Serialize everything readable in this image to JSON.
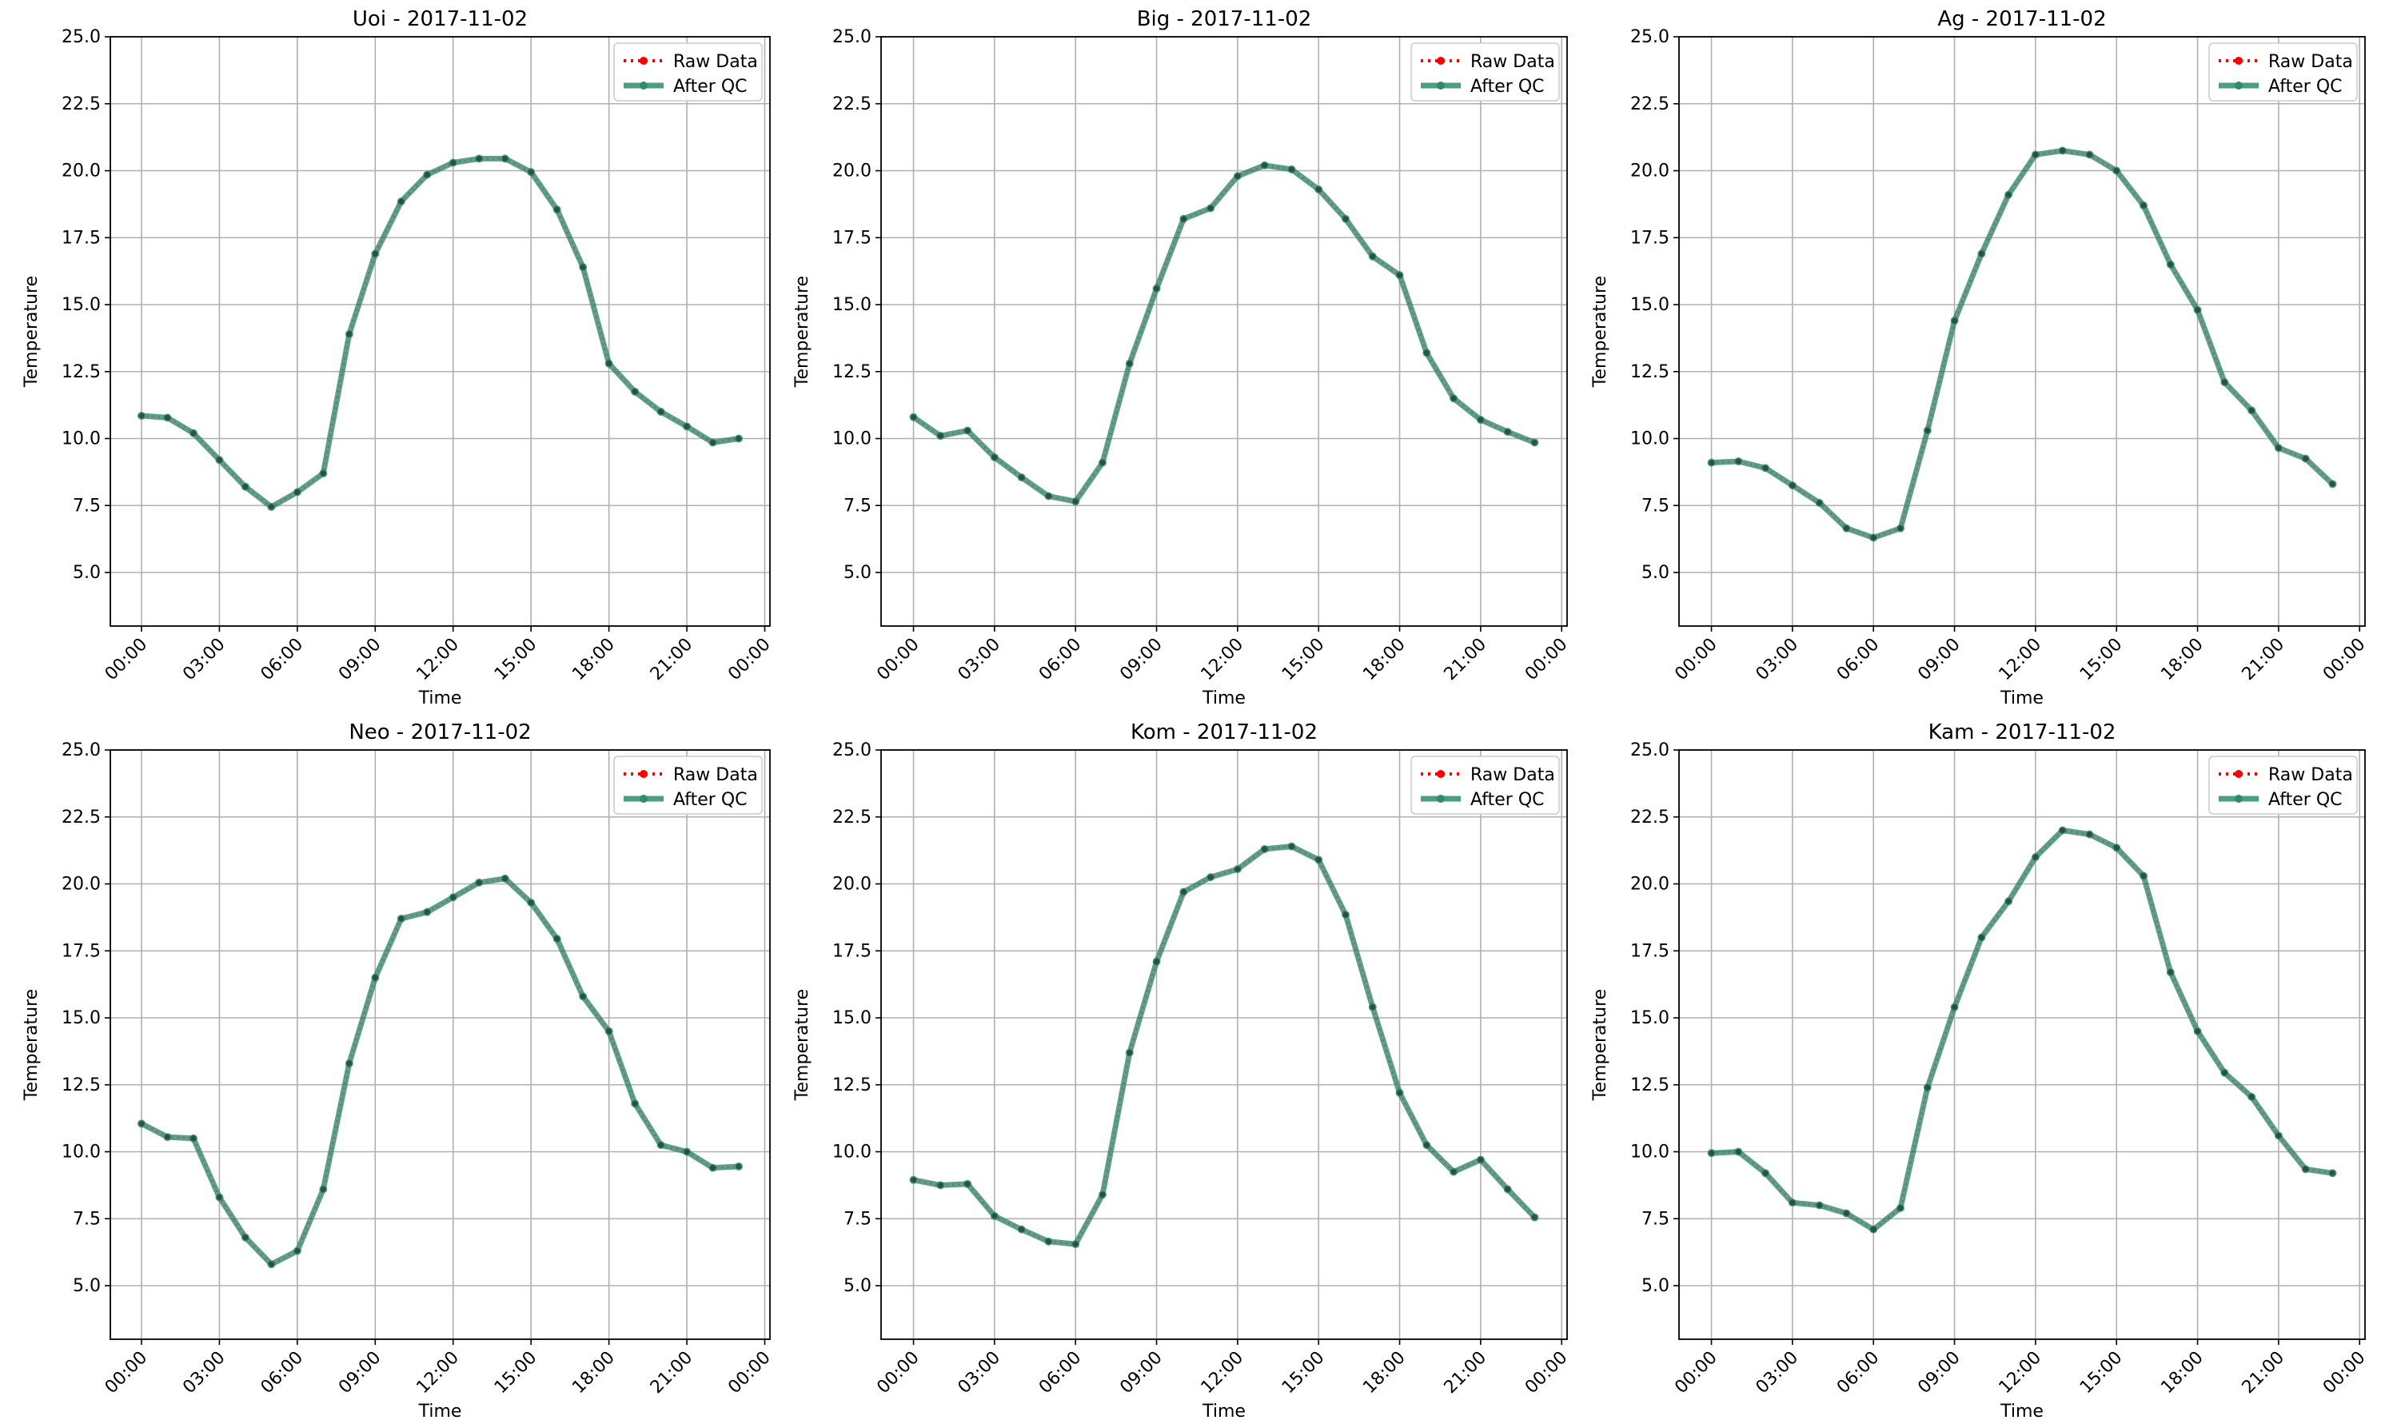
{
  "chart_data": [
    {
      "type": "line",
      "title": "Uoi - 2017-11-02",
      "xlabel": "Time",
      "ylabel": "Temperature",
      "ylim": [
        3,
        25
      ],
      "yticks": [
        "5.0",
        "7.5",
        "10.0",
        "12.5",
        "15.0",
        "17.5",
        "20.0",
        "22.5",
        "25.0"
      ],
      "xlim_hours": [
        -1.2,
        24.2
      ],
      "xticks": [
        "00:00",
        "03:00",
        "06:00",
        "09:00",
        "12:00",
        "15:00",
        "18:00",
        "21:00",
        "00:00"
      ],
      "grid": true,
      "legend_position": "top-right",
      "x_hours": [
        0,
        1,
        2,
        3,
        4,
        5,
        6,
        7,
        8,
        9,
        10,
        11,
        12,
        13,
        14,
        15,
        16,
        17,
        18,
        19,
        20,
        21,
        22,
        23
      ],
      "series": [
        {
          "name": "Raw Data",
          "color": "#ff0000",
          "style": "dotted",
          "values": [
            10.85,
            10.78,
            10.2,
            9.2,
            8.2,
            7.45,
            8.0,
            8.7,
            13.9,
            16.9,
            18.85,
            19.85,
            20.3,
            20.45,
            20.45,
            19.95,
            18.55,
            16.4,
            12.8,
            11.75,
            11.0,
            10.45,
            9.85,
            10.0
          ]
        },
        {
          "name": "After QC",
          "color": "#2e8b6e",
          "style": "solid",
          "values": [
            10.85,
            10.78,
            10.2,
            9.2,
            8.2,
            7.45,
            8.0,
            8.7,
            13.9,
            16.9,
            18.85,
            19.85,
            20.3,
            20.45,
            20.45,
            19.95,
            18.55,
            16.4,
            12.8,
            11.75,
            11.0,
            10.45,
            9.85,
            10.0
          ]
        }
      ]
    },
    {
      "type": "line",
      "title": "Big - 2017-11-02",
      "xlabel": "Time",
      "ylabel": "Temperature",
      "ylim": [
        3,
        25
      ],
      "yticks": [
        "5.0",
        "7.5",
        "10.0",
        "12.5",
        "15.0",
        "17.5",
        "20.0",
        "22.5",
        "25.0"
      ],
      "xlim_hours": [
        -1.2,
        24.2
      ],
      "xticks": [
        "00:00",
        "03:00",
        "06:00",
        "09:00",
        "12:00",
        "15:00",
        "18:00",
        "21:00",
        "00:00"
      ],
      "grid": true,
      "legend_position": "top-right",
      "x_hours": [
        0,
        1,
        2,
        3,
        4,
        5,
        6,
        7,
        8,
        9,
        10,
        11,
        12,
        13,
        14,
        15,
        16,
        17,
        18,
        19,
        20,
        21,
        22,
        23
      ],
      "series": [
        {
          "name": "Raw Data",
          "color": "#ff0000",
          "style": "dotted",
          "values": [
            10.8,
            10.1,
            10.3,
            9.3,
            8.55,
            7.85,
            7.65,
            9.1,
            12.8,
            15.6,
            18.2,
            18.6,
            19.8,
            20.2,
            20.05,
            19.3,
            18.2,
            16.8,
            16.1,
            13.2,
            11.5,
            10.7,
            10.25,
            9.85
          ]
        },
        {
          "name": "After QC",
          "color": "#2e8b6e",
          "style": "solid",
          "values": [
            10.8,
            10.1,
            10.3,
            9.3,
            8.55,
            7.85,
            7.65,
            9.1,
            12.8,
            15.6,
            18.2,
            18.6,
            19.8,
            20.2,
            20.05,
            19.3,
            18.2,
            16.8,
            16.1,
            13.2,
            11.5,
            10.7,
            10.25,
            9.85
          ]
        }
      ]
    },
    {
      "type": "line",
      "title": "Ag - 2017-11-02",
      "xlabel": "Time",
      "ylabel": "Temperature",
      "ylim": [
        3,
        25
      ],
      "yticks": [
        "5.0",
        "7.5",
        "10.0",
        "12.5",
        "15.0",
        "17.5",
        "20.0",
        "22.5",
        "25.0"
      ],
      "xlim_hours": [
        -1.2,
        24.2
      ],
      "xticks": [
        "00:00",
        "03:00",
        "06:00",
        "09:00",
        "12:00",
        "15:00",
        "18:00",
        "21:00",
        "00:00"
      ],
      "grid": true,
      "legend_position": "top-right",
      "x_hours": [
        0,
        1,
        2,
        3,
        4,
        5,
        6,
        7,
        8,
        9,
        10,
        11,
        12,
        13,
        14,
        15,
        16,
        17,
        18,
        19,
        20,
        21,
        22,
        23
      ],
      "series": [
        {
          "name": "Raw Data",
          "color": "#ff0000",
          "style": "dotted",
          "values": [
            9.1,
            9.15,
            8.9,
            8.25,
            7.6,
            6.65,
            6.3,
            6.65,
            10.3,
            14.4,
            16.9,
            19.1,
            20.6,
            20.75,
            20.6,
            20.0,
            18.7,
            16.5,
            14.8,
            12.1,
            11.05,
            9.65,
            9.25,
            8.3
          ]
        },
        {
          "name": "After QC",
          "color": "#2e8b6e",
          "style": "solid",
          "values": [
            9.1,
            9.15,
            8.9,
            8.25,
            7.6,
            6.65,
            6.3,
            6.65,
            10.3,
            14.4,
            16.9,
            19.1,
            20.6,
            20.75,
            20.6,
            20.0,
            18.7,
            16.5,
            14.8,
            12.1,
            11.05,
            9.65,
            9.25,
            8.3
          ]
        }
      ]
    },
    {
      "type": "line",
      "title": "Neo - 2017-11-02",
      "xlabel": "Time",
      "ylabel": "Temperature",
      "ylim": [
        3,
        25
      ],
      "yticks": [
        "5.0",
        "7.5",
        "10.0",
        "12.5",
        "15.0",
        "17.5",
        "20.0",
        "22.5",
        "25.0"
      ],
      "xlim_hours": [
        -1.2,
        24.2
      ],
      "xticks": [
        "00:00",
        "03:00",
        "06:00",
        "09:00",
        "12:00",
        "15:00",
        "18:00",
        "21:00",
        "00:00"
      ],
      "grid": true,
      "legend_position": "top-right",
      "x_hours": [
        0,
        1,
        2,
        3,
        4,
        5,
        6,
        7,
        8,
        9,
        10,
        11,
        12,
        13,
        14,
        15,
        16,
        17,
        18,
        19,
        20,
        21,
        22,
        23
      ],
      "series": [
        {
          "name": "Raw Data",
          "color": "#ff0000",
          "style": "dotted",
          "values": [
            11.05,
            10.55,
            10.5,
            8.3,
            6.8,
            5.8,
            6.3,
            8.6,
            13.3,
            16.5,
            18.7,
            18.95,
            19.5,
            20.05,
            20.2,
            19.3,
            17.95,
            15.8,
            14.5,
            11.8,
            10.25,
            10.0,
            9.4,
            9.45
          ]
        },
        {
          "name": "After QC",
          "color": "#2e8b6e",
          "style": "solid",
          "values": [
            11.05,
            10.55,
            10.5,
            8.3,
            6.8,
            5.8,
            6.3,
            8.6,
            13.3,
            16.5,
            18.7,
            18.95,
            19.5,
            20.05,
            20.2,
            19.3,
            17.95,
            15.8,
            14.5,
            11.8,
            10.25,
            10.0,
            9.4,
            9.45
          ]
        }
      ]
    },
    {
      "type": "line",
      "title": "Kom - 2017-11-02",
      "xlabel": "Time",
      "ylabel": "Temperature",
      "ylim": [
        3,
        25
      ],
      "yticks": [
        "5.0",
        "7.5",
        "10.0",
        "12.5",
        "15.0",
        "17.5",
        "20.0",
        "22.5",
        "25.0"
      ],
      "xlim_hours": [
        -1.2,
        24.2
      ],
      "xticks": [
        "00:00",
        "03:00",
        "06:00",
        "09:00",
        "12:00",
        "15:00",
        "18:00",
        "21:00",
        "00:00"
      ],
      "grid": true,
      "legend_position": "top-right",
      "x_hours": [
        0,
        1,
        2,
        3,
        4,
        5,
        6,
        7,
        8,
        9,
        10,
        11,
        12,
        13,
        14,
        15,
        16,
        17,
        18,
        19,
        20,
        21,
        22,
        23
      ],
      "series": [
        {
          "name": "Raw Data",
          "color": "#ff0000",
          "style": "dotted",
          "values": [
            8.95,
            8.75,
            8.8,
            7.6,
            7.1,
            6.65,
            6.55,
            8.4,
            13.7,
            17.1,
            19.7,
            20.25,
            20.55,
            21.3,
            21.4,
            20.9,
            18.85,
            15.4,
            12.2,
            10.25,
            9.25,
            9.7,
            8.6,
            7.55
          ]
        },
        {
          "name": "After QC",
          "color": "#2e8b6e",
          "style": "solid",
          "values": [
            8.95,
            8.75,
            8.8,
            7.6,
            7.1,
            6.65,
            6.55,
            8.4,
            13.7,
            17.1,
            19.7,
            20.25,
            20.55,
            21.3,
            21.4,
            20.9,
            18.85,
            15.4,
            12.2,
            10.25,
            9.25,
            9.7,
            8.6,
            7.55
          ]
        }
      ]
    },
    {
      "type": "line",
      "title": "Kam - 2017-11-02",
      "xlabel": "Time",
      "ylabel": "Temperature",
      "ylim": [
        3,
        25
      ],
      "yticks": [
        "5.0",
        "7.5",
        "10.0",
        "12.5",
        "15.0",
        "17.5",
        "20.0",
        "22.5",
        "25.0"
      ],
      "xlim_hours": [
        -1.2,
        24.2
      ],
      "xticks": [
        "00:00",
        "03:00",
        "06:00",
        "09:00",
        "12:00",
        "15:00",
        "18:00",
        "21:00",
        "00:00"
      ],
      "grid": true,
      "legend_position": "top-right",
      "x_hours": [
        0,
        1,
        2,
        3,
        4,
        5,
        6,
        7,
        8,
        9,
        10,
        11,
        12,
        13,
        14,
        15,
        16,
        17,
        18,
        19,
        20,
        21,
        22,
        23
      ],
      "series": [
        {
          "name": "Raw Data",
          "color": "#ff0000",
          "style": "dotted",
          "values": [
            9.95,
            10.0,
            9.2,
            8.1,
            8.0,
            7.7,
            7.1,
            7.9,
            12.4,
            15.4,
            18.0,
            19.35,
            21.0,
            22.0,
            21.85,
            21.35,
            20.3,
            16.7,
            14.5,
            12.95,
            12.05,
            10.6,
            9.35,
            9.2
          ]
        },
        {
          "name": "After QC",
          "color": "#2e8b6e",
          "style": "solid",
          "values": [
            9.95,
            10.0,
            9.2,
            8.1,
            8.0,
            7.7,
            7.1,
            7.9,
            12.4,
            15.4,
            18.0,
            19.35,
            21.0,
            22.0,
            21.85,
            21.35,
            20.3,
            16.7,
            14.5,
            12.95,
            12.05,
            10.6,
            9.35,
            9.2
          ]
        }
      ]
    }
  ]
}
